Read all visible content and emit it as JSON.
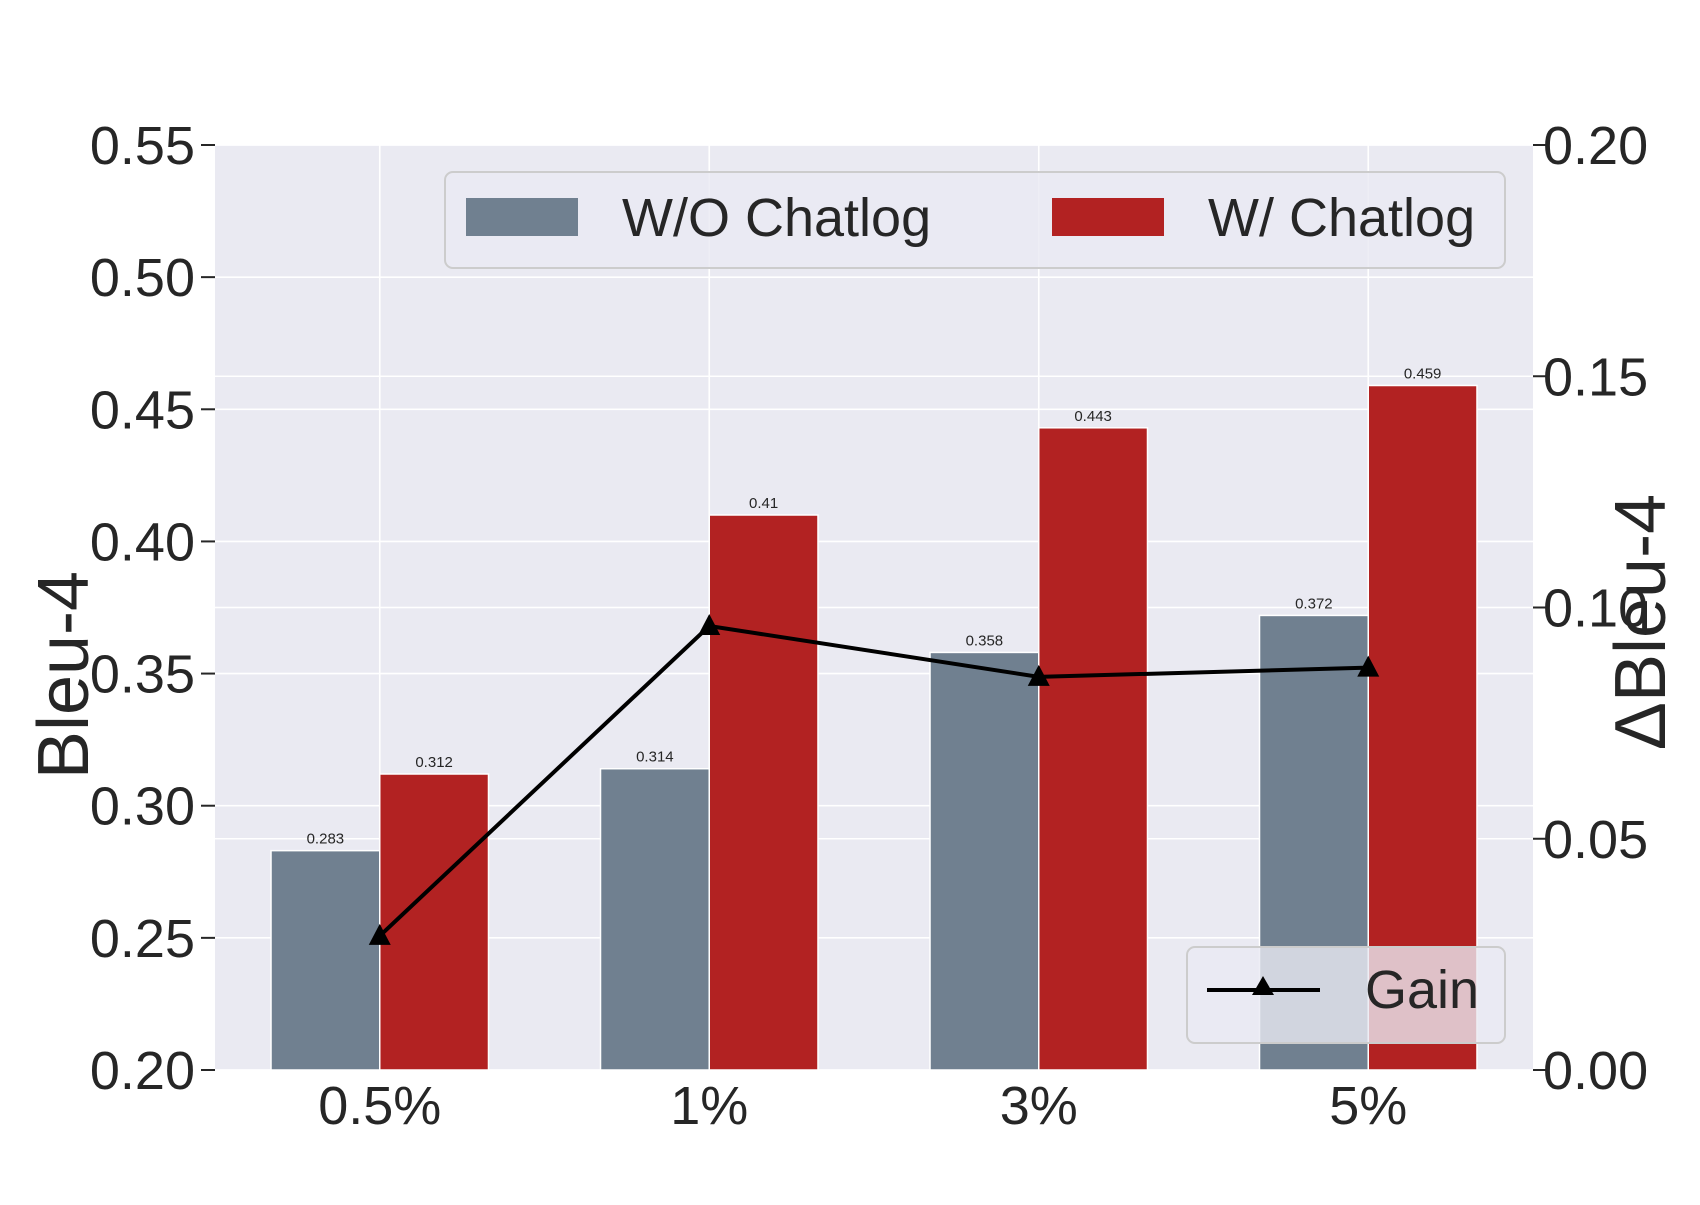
{
  "chart_data": {
    "type": "bar",
    "categories": [
      "0.5%",
      "1%",
      "3%",
      "5%"
    ],
    "series": [
      {
        "name": "W/O Chatlog",
        "color": "#708090",
        "values": [
          0.283,
          0.314,
          0.358,
          0.372
        ]
      },
      {
        "name": "W/ Chatlog",
        "color": "#B22222",
        "values": [
          0.312,
          0.41,
          0.443,
          0.459
        ]
      }
    ],
    "value_labels": [
      [
        "0.283",
        "0.314",
        "0.358",
        "0.372"
      ],
      [
        "0.312",
        "0.41",
        "0.443",
        "0.459"
      ]
    ],
    "line_series": {
      "name": "Gain",
      "color": "#000000",
      "marker": "triangle",
      "axis": "right",
      "values": [
        0.029,
        0.096,
        0.085,
        0.087
      ]
    },
    "ylabel": "Bleu-4",
    "y2label": "ΔBleu-4",
    "ylim": [
      0.2,
      0.55
    ],
    "y2lim": [
      0.0,
      0.2
    ],
    "yticks": [
      "0.20",
      "0.25",
      "0.30",
      "0.35",
      "0.40",
      "0.45",
      "0.50",
      "0.55"
    ],
    "y2ticks": [
      "0.00",
      "0.05",
      "0.10",
      "0.15",
      "0.20"
    ],
    "grid": true,
    "background": "#EAEAF2",
    "legend_bars_position": "top-right",
    "legend_line_position": "bottom-right"
  }
}
